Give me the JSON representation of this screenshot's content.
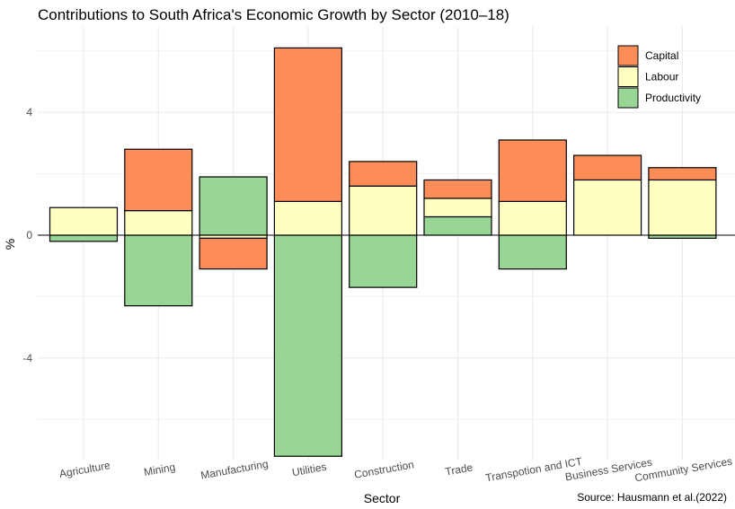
{
  "chart_data": {
    "type": "bar",
    "stacked": true,
    "title": "Contributions to South Africa's Economic Growth by Sector (2010–18)",
    "xlabel": "Sector",
    "ylabel": "%",
    "caption": "Source: Hausmann et al.(2022)",
    "ylim": [
      -7.8,
      6.7
    ],
    "yticks": [
      -4,
      0,
      4
    ],
    "grid": true,
    "legend_position": "top-right",
    "categories": [
      "Agriculture",
      "Mining",
      "Manufacturing",
      "Utilities",
      "Construction",
      "Trade",
      "Transpotion and ICT",
      "Business Services",
      "Community Services"
    ],
    "series": [
      {
        "name": "Capital",
        "color": "#fc8d59",
        "values": [
          0,
          2.0,
          -1.0,
          5.0,
          0.8,
          0.6,
          2.0,
          0.8,
          0.4
        ]
      },
      {
        "name": "Labour",
        "color": "#ffffbf",
        "values": [
          0.9,
          0.8,
          -0.1,
          1.1,
          1.6,
          0.6,
          1.1,
          1.8,
          1.8
        ]
      },
      {
        "name": "Productivity",
        "color": "#99d594",
        "values": [
          -0.2,
          -2.3,
          1.9,
          -7.2,
          -1.7,
          0.6,
          -1.1,
          0,
          -0.1
        ]
      }
    ]
  }
}
